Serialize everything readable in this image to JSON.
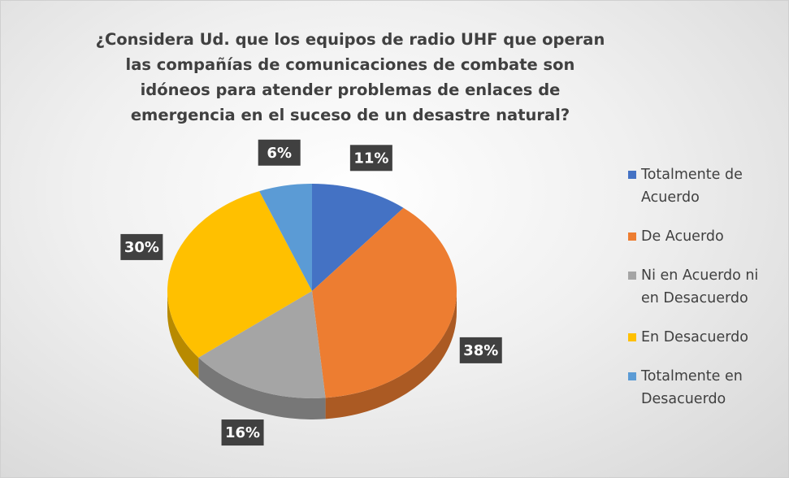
{
  "chart_data": {
    "type": "pie",
    "title": "¿Considera Ud. que los equipos de radio UHF que operan las compañías de comunicaciones de combate son idóneos para atender problemas de enlaces de emergencia en el suceso de un desastre natural?",
    "categories": [
      "Totalmente de Acuerdo",
      "De Acuerdo",
      "Ni en Acuerdo ni en Desacuerdo",
      "En Desacuerdo",
      "Totalmente en Desacuerdo"
    ],
    "values": [
      11,
      38,
      16,
      30,
      6
    ],
    "value_labels": [
      "11%",
      "38%",
      "16%",
      "30%",
      "6%"
    ],
    "colors": [
      "#4472c4",
      "#ed7d31",
      "#a5a5a5",
      "#ffc000",
      "#5b9bd5"
    ],
    "legend": "right"
  }
}
